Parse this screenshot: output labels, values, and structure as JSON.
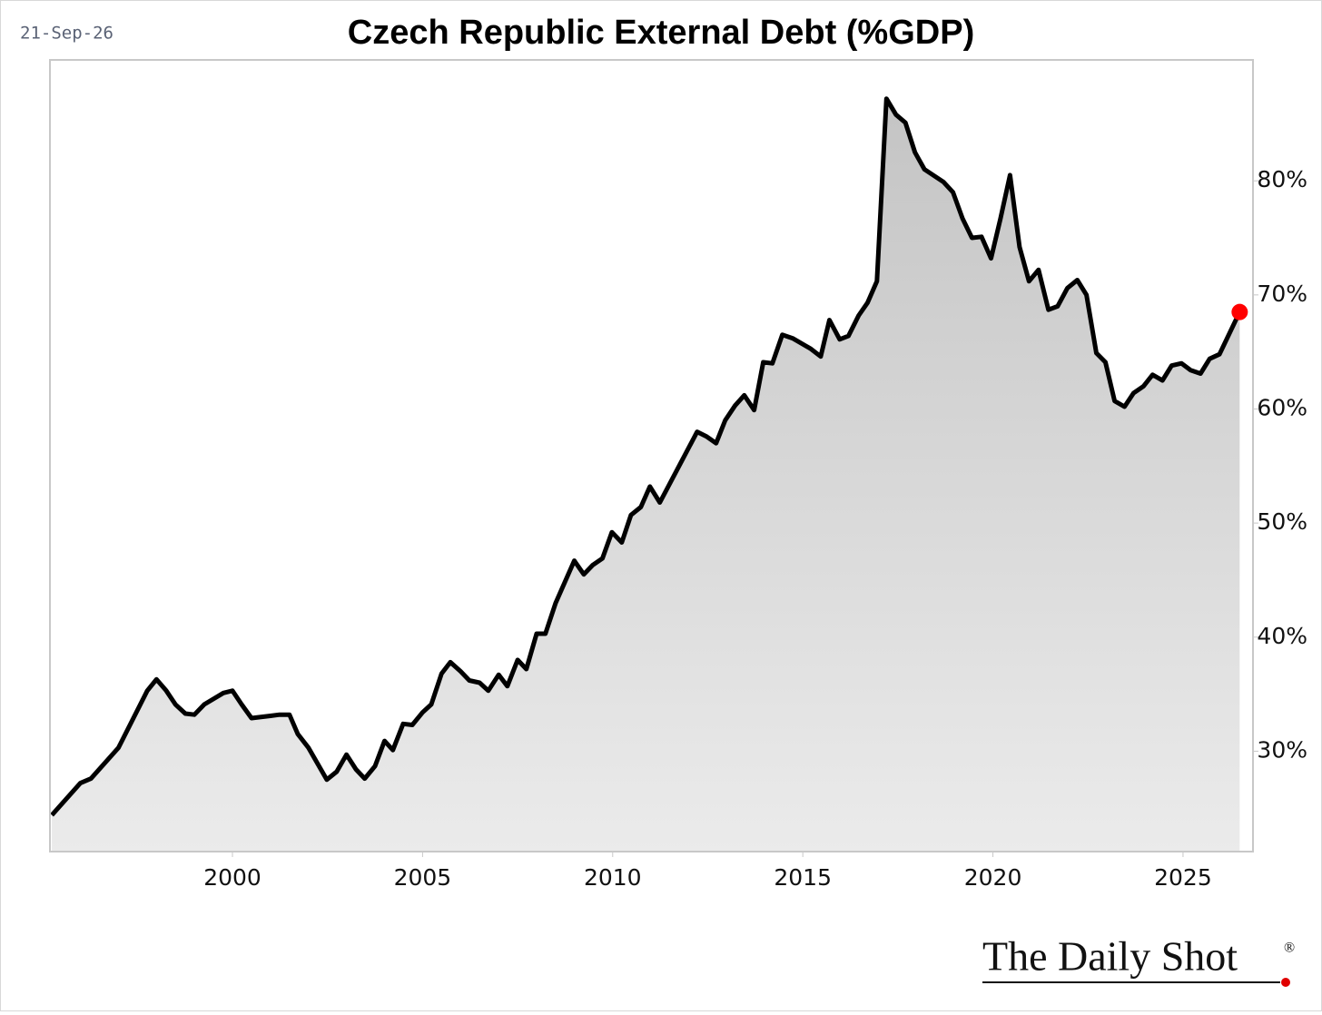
{
  "chart_data": {
    "type": "area",
    "title": "Czech Republic External Debt (%GDP)",
    "date": "21-Sep-26",
    "source": "The Daily Shot",
    "source_mark": "®",
    "color": "#000000",
    "fill_color_top": "#c4c4c4",
    "fill_color_bottom": "#ebebeb",
    "marker_color": "#ff0000",
    "x": [
      1995.25,
      1996.0,
      1996.28,
      1997.0,
      1997.76,
      1998.0,
      1998.26,
      1998.5,
      1998.76,
      1999.0,
      1999.26,
      1999.76,
      2000.0,
      2000.24,
      2000.5,
      2001.0,
      2001.24,
      2001.5,
      2001.72,
      2002.0,
      2002.48,
      2002.74,
      2003.0,
      2003.25,
      2003.48,
      2003.75,
      2004.0,
      2004.22,
      2004.49,
      2004.73,
      2005.0,
      2005.23,
      2005.5,
      2005.73,
      2006.0,
      2006.23,
      2006.5,
      2006.73,
      2007.0,
      2007.23,
      2007.5,
      2007.73,
      2008.0,
      2008.23,
      2008.5,
      2008.99,
      2009.24,
      2009.47,
      2009.73,
      2009.98,
      2010.24,
      2010.48,
      2010.74,
      2010.98,
      2011.24,
      2012.22,
      2012.46,
      2012.72,
      2012.96,
      2013.22,
      2013.46,
      2013.72,
      2013.96,
      2014.2,
      2014.46,
      2014.73,
      2015.2,
      2015.47,
      2015.7,
      2015.97,
      2016.2,
      2016.47,
      2016.7,
      2016.95,
      2017.2,
      2017.45,
      2017.7,
      2017.95,
      2018.2,
      2018.7,
      2018.95,
      2019.2,
      2019.45,
      2019.7,
      2019.95,
      2020.2,
      2020.45,
      2020.7,
      2020.95,
      2021.2,
      2021.46,
      2021.7,
      2021.96,
      2022.22,
      2022.46,
      2022.72,
      2022.96,
      2023.2,
      2023.46,
      2023.7,
      2023.96,
      2024.2,
      2024.46,
      2024.7,
      2024.96,
      2025.2,
      2025.46,
      2025.7,
      2025.96,
      2026.49
    ],
    "values": [
      24.4,
      27.2,
      27.6,
      30.3,
      35.3,
      36.3,
      35.3,
      34.1,
      33.3,
      33.2,
      34.1,
      35.1,
      35.3,
      34.1,
      32.9,
      33.1,
      33.2,
      33.2,
      31.5,
      30.3,
      27.5,
      28.2,
      29.7,
      28.4,
      27.6,
      28.7,
      30.9,
      30.1,
      32.4,
      32.3,
      33.4,
      34.1,
      36.8,
      37.8,
      37.0,
      36.2,
      36.0,
      35.3,
      36.7,
      35.7,
      38.0,
      37.2,
      40.3,
      40.3,
      43.0,
      46.7,
      45.5,
      46.3,
      46.9,
      49.2,
      48.3,
      50.7,
      51.4,
      53.2,
      51.8,
      58.0,
      57.6,
      57.0,
      59.0,
      60.3,
      61.2,
      59.9,
      64.1,
      64.0,
      66.5,
      66.2,
      65.3,
      64.6,
      67.8,
      66.1,
      66.4,
      68.2,
      69.3,
      71.2,
      87.2,
      85.8,
      85.1,
      82.5,
      81.0,
      79.9,
      79.0,
      76.7,
      75.0,
      75.1,
      73.2,
      76.7,
      80.5,
      74.2,
      71.2,
      72.2,
      68.7,
      69.0,
      70.6,
      71.3,
      70.0,
      64.9,
      64.1,
      60.7,
      60.2,
      61.4,
      62.0,
      63.0,
      62.5,
      63.8,
      64.0,
      63.4,
      63.1,
      64.4,
      64.8,
      68.5
    ],
    "xlim": [
      1995.2,
      2026.84
    ],
    "ylim": [
      21.2,
      90.6
    ],
    "xticks": [
      2000,
      2005,
      2010,
      2015,
      2020,
      2025
    ],
    "yticks": [
      {
        "value": 30,
        "label": "30%"
      },
      {
        "value": 40,
        "label": "40%"
      },
      {
        "value": 50,
        "label": "50%"
      },
      {
        "value": 60,
        "label": "60%"
      },
      {
        "value": 70,
        "label": "70%"
      },
      {
        "value": 80,
        "label": "80%"
      }
    ],
    "grid": false
  }
}
